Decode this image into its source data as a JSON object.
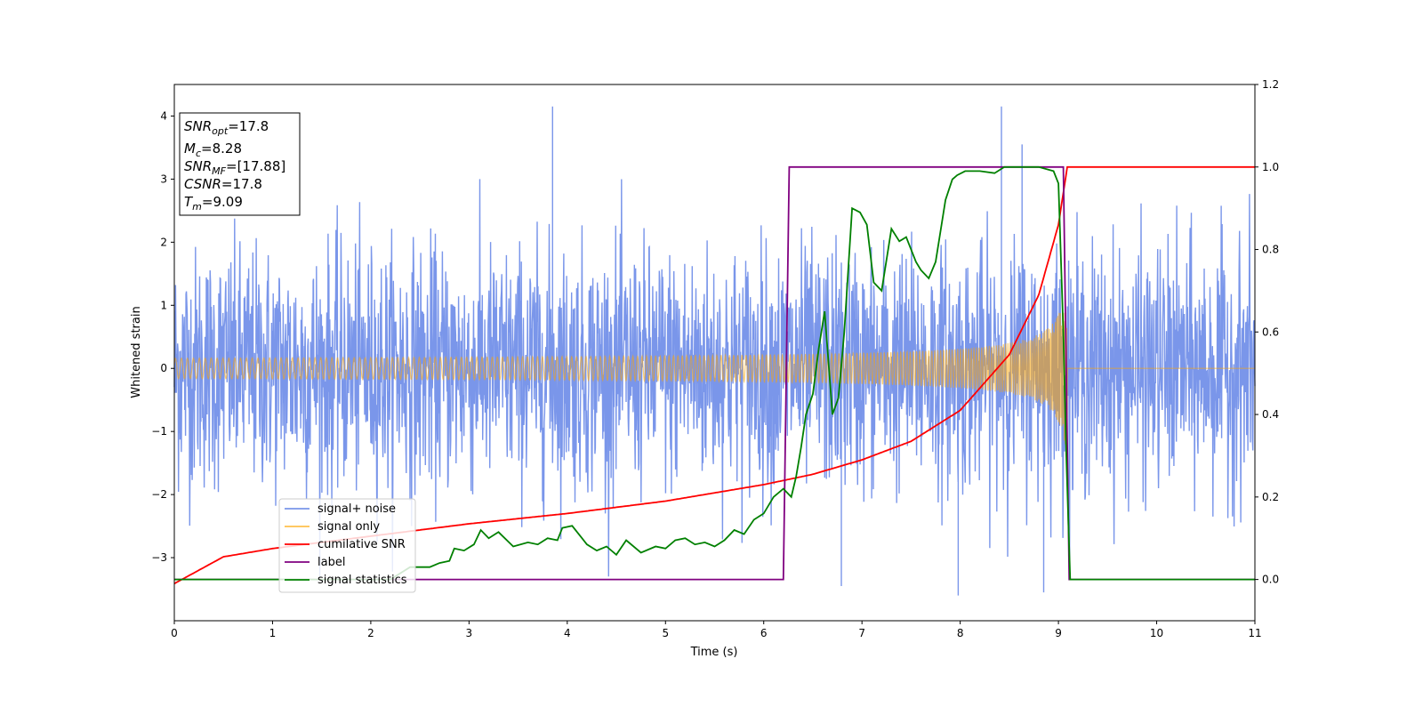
{
  "chart_data": {
    "type": "line",
    "xlabel": "Time (s)",
    "ylabel": "Whitened strain",
    "xlim": [
      0,
      11
    ],
    "ylim": [
      -4,
      4.5
    ],
    "y2lim": [
      -0.1,
      1.2
    ],
    "x_ticks": [
      "0",
      "1",
      "2",
      "3",
      "4",
      "5",
      "6",
      "7",
      "8",
      "9",
      "10",
      "11"
    ],
    "y_ticks": [
      "−3",
      "−2",
      "−1",
      "0",
      "1",
      "2",
      "3",
      "4"
    ],
    "y2_ticks": [
      "0.0",
      "0.2",
      "0.4",
      "0.6",
      "0.8",
      "1.0",
      "1.2"
    ],
    "grid": false,
    "legend_position": "lower-left",
    "info_box": {
      "snr_opt": {
        "name": "SNR",
        "sub": "opt",
        "value": "=17.8"
      },
      "mc": {
        "name": "M",
        "sub": "c",
        "value": "=8.28"
      },
      "snr_mf": {
        "name": "SNR",
        "sub": "MF",
        "value": "=[17.88]"
      },
      "csnr": {
        "name": "CSNR",
        "value": "=17.8"
      },
      "tm": {
        "name": "T",
        "sub": "m",
        "value": "=9.09"
      }
    },
    "series": [
      {
        "name": "signal+ noise",
        "color": "#4169E1",
        "axis": "left",
        "description_values": {
          "noise_std": 0.95,
          "spikes": [
            [
              3.85,
              4.15
            ],
            [
              8.42,
              4.15
            ],
            [
              8.63,
              3.55
            ],
            [
              7.98,
              -3.6
            ],
            [
              6.79,
              -3.45
            ],
            [
              8.85,
              -3.55
            ]
          ]
        }
      },
      {
        "name": "signal only",
        "color": "#FFA500",
        "axis": "left",
        "envelope": {
          "t_start": 0,
          "t_end": 9.09,
          "amp_start": 0.1,
          "amp_end": 1.5
        }
      },
      {
        "name": "cumilative SNR",
        "color": "#FF0000",
        "axis": "right",
        "x": [
          0,
          0.5,
          1,
          2,
          3,
          4,
          5,
          6,
          6.5,
          7,
          7.5,
          8,
          8.5,
          8.8,
          9.0,
          9.09,
          11
        ],
        "y": [
          -0.01,
          0.055,
          0.075,
          0.105,
          0.135,
          0.16,
          0.19,
          0.23,
          0.255,
          0.29,
          0.335,
          0.41,
          0.545,
          0.69,
          0.86,
          1.0,
          1.0
        ]
      },
      {
        "name": "label",
        "color": "#800080",
        "axis": "right",
        "x": [
          0,
          6.2,
          6.26,
          9.05,
          9.11,
          11
        ],
        "y": [
          0,
          0,
          1,
          1,
          0,
          0
        ]
      },
      {
        "name": "signal statistics",
        "color": "#008000",
        "axis": "right",
        "x": [
          0,
          2.2,
          2.4,
          2.6,
          2.7,
          2.8,
          2.85,
          2.95,
          3.05,
          3.12,
          3.2,
          3.3,
          3.45,
          3.6,
          3.7,
          3.8,
          3.9,
          3.95,
          4.05,
          4.15,
          4.2,
          4.3,
          4.4,
          4.5,
          4.6,
          4.75,
          4.9,
          5.0,
          5.1,
          5.2,
          5.3,
          5.4,
          5.5,
          5.6,
          5.7,
          5.8,
          5.9,
          6.0,
          6.1,
          6.2,
          6.28,
          6.33,
          6.38,
          6.43,
          6.5,
          6.56,
          6.62,
          6.7,
          6.76,
          6.82,
          6.9,
          6.98,
          7.05,
          7.12,
          7.2,
          7.3,
          7.38,
          7.45,
          7.55,
          7.6,
          7.68,
          7.75,
          7.85,
          7.92,
          7.97,
          8.05,
          8.2,
          8.35,
          8.45,
          8.6,
          8.8,
          8.95,
          9.0,
          9.05,
          9.08,
          9.12,
          11
        ],
        "y": [
          0,
          0.0,
          0.03,
          0.03,
          0.04,
          0.045,
          0.075,
          0.07,
          0.085,
          0.12,
          0.1,
          0.115,
          0.08,
          0.09,
          0.085,
          0.1,
          0.095,
          0.125,
          0.13,
          0.1,
          0.085,
          0.07,
          0.08,
          0.06,
          0.095,
          0.065,
          0.08,
          0.075,
          0.095,
          0.1,
          0.085,
          0.09,
          0.08,
          0.095,
          0.12,
          0.11,
          0.145,
          0.16,
          0.2,
          0.22,
          0.2,
          0.25,
          0.32,
          0.4,
          0.45,
          0.56,
          0.65,
          0.4,
          0.44,
          0.6,
          0.9,
          0.89,
          0.86,
          0.72,
          0.7,
          0.85,
          0.82,
          0.83,
          0.77,
          0.75,
          0.73,
          0.77,
          0.92,
          0.97,
          0.98,
          0.99,
          0.99,
          0.985,
          1.0,
          1.0,
          1.0,
          0.99,
          0.96,
          0.6,
          0.3,
          0.0,
          0.0
        ]
      }
    ]
  }
}
